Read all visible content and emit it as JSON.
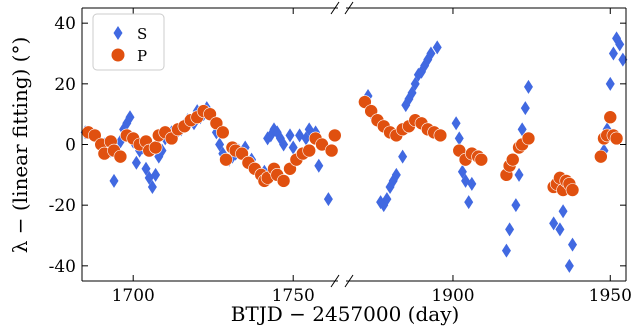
{
  "chart_data": {
    "type": "scatter",
    "xlabel": "BTJD − 2457000 (day)",
    "ylabel": "λ − (linear fitting) (°)",
    "ylim": [
      -45,
      45
    ],
    "yticks": [
      -40,
      -20,
      0,
      20,
      40
    ],
    "broken_x_axis": true,
    "panels": [
      {
        "xlim": [
          1684,
          1764
        ],
        "xticks": [
          1700,
          1750
        ]
      },
      {
        "xlim": [
          1866,
          1955
        ],
        "xticks": [
          1900,
          1950
        ]
      }
    ],
    "legend": {
      "position": "top-left",
      "entries": [
        {
          "label": "S",
          "marker": "diamond",
          "color": "#4169e1"
        },
        {
          "label": "P",
          "marker": "circle",
          "color": "#e0500f"
        }
      ]
    },
    "series": [
      {
        "name": "S",
        "marker": "diamond",
        "color": "#4169e1",
        "points": [
          [
            1685,
            4
          ],
          [
            1688,
            3
          ],
          [
            1691,
            0
          ],
          [
            1693,
            -2
          ],
          [
            1694,
            -12
          ],
          [
            1696,
            1
          ],
          [
            1697,
            5
          ],
          [
            1698,
            7
          ],
          [
            1699,
            9
          ],
          [
            1700,
            1
          ],
          [
            1701,
            -6
          ],
          [
            1702,
            -2
          ],
          [
            1703,
            -1
          ],
          [
            1704,
            -8
          ],
          [
            1705,
            -11
          ],
          [
            1706,
            -14
          ],
          [
            1707,
            -10
          ],
          [
            1708,
            -4
          ],
          [
            1709,
            -2
          ],
          [
            1710,
            2
          ],
          [
            1712,
            4
          ],
          [
            1713,
            3
          ],
          [
            1715,
            5
          ],
          [
            1717,
            8
          ],
          [
            1719,
            7
          ],
          [
            1720,
            11
          ],
          [
            1721,
            9
          ],
          [
            1722,
            10
          ],
          [
            1723,
            12
          ],
          [
            1724,
            10
          ],
          [
            1726,
            4
          ],
          [
            1727,
            0
          ],
          [
            1728,
            -3
          ],
          [
            1730,
            -5
          ],
          [
            1731,
            -4
          ],
          [
            1732,
            -3
          ],
          [
            1733,
            -2
          ],
          [
            1735,
            -1
          ],
          [
            1737,
            -5
          ],
          [
            1739,
            -9
          ],
          [
            1740,
            -11
          ],
          [
            1741,
            -9
          ],
          [
            1742,
            2
          ],
          [
            1743,
            3
          ],
          [
            1744,
            5
          ],
          [
            1745,
            4
          ],
          [
            1746,
            2
          ],
          [
            1747,
            0
          ],
          [
            1749,
            3
          ],
          [
            1750,
            -1
          ],
          [
            1752,
            3
          ],
          [
            1754,
            2
          ],
          [
            1755,
            5
          ],
          [
            1757,
            4
          ],
          [
            1758,
            -7
          ],
          [
            1761,
            -18
          ],
          [
            1873,
            16
          ],
          [
            1875,
            9
          ],
          [
            1877,
            -19
          ],
          [
            1878,
            -20
          ],
          [
            1879,
            -18
          ],
          [
            1880,
            -14
          ],
          [
            1881,
            -12
          ],
          [
            1882,
            -10
          ],
          [
            1883,
            4
          ],
          [
            1884,
            -4
          ],
          [
            1885,
            13
          ],
          [
            1886,
            15
          ],
          [
            1887,
            17
          ],
          [
            1888,
            20
          ],
          [
            1889,
            23
          ],
          [
            1890,
            24
          ],
          [
            1891,
            26
          ],
          [
            1892,
            28
          ],
          [
            1893,
            30
          ],
          [
            1895,
            32
          ],
          [
            1901,
            7
          ],
          [
            1902,
            2
          ],
          [
            1903,
            -9
          ],
          [
            1904,
            -12
          ],
          [
            1905,
            -19
          ],
          [
            1906,
            -13
          ],
          [
            1917,
            -35
          ],
          [
            1918,
            -28
          ],
          [
            1920,
            -20
          ],
          [
            1921,
            -10
          ],
          [
            1922,
            5
          ],
          [
            1923,
            12
          ],
          [
            1924,
            19
          ],
          [
            1932,
            -26
          ],
          [
            1934,
            -28
          ],
          [
            1935,
            -22
          ],
          [
            1936,
            -14
          ],
          [
            1937,
            -40
          ],
          [
            1938,
            -33
          ],
          [
            1948,
            -2
          ],
          [
            1949,
            5
          ],
          [
            1950,
            20
          ],
          [
            1951,
            30
          ],
          [
            1952,
            35
          ],
          [
            1953,
            33
          ],
          [
            1954,
            28
          ]
        ]
      },
      {
        "name": "P",
        "marker": "circle",
        "color": "#e0500f",
        "points": [
          [
            1686,
            4
          ],
          [
            1688,
            3
          ],
          [
            1690,
            0
          ],
          [
            1691,
            -3
          ],
          [
            1693,
            1
          ],
          [
            1694,
            -2
          ],
          [
            1696,
            -4
          ],
          [
            1698,
            3
          ],
          [
            1700,
            2
          ],
          [
            1702,
            0
          ],
          [
            1704,
            1
          ],
          [
            1705,
            -2
          ],
          [
            1707,
            -1
          ],
          [
            1708,
            3
          ],
          [
            1710,
            4
          ],
          [
            1712,
            2
          ],
          [
            1714,
            5
          ],
          [
            1716,
            6
          ],
          [
            1718,
            8
          ],
          [
            1720,
            9
          ],
          [
            1722,
            11
          ],
          [
            1724,
            10
          ],
          [
            1726,
            7
          ],
          [
            1728,
            4
          ],
          [
            1729,
            -5
          ],
          [
            1731,
            -1
          ],
          [
            1732,
            -2
          ],
          [
            1734,
            -3
          ],
          [
            1736,
            -6
          ],
          [
            1738,
            -8
          ],
          [
            1740,
            -10
          ],
          [
            1741,
            -12
          ],
          [
            1742,
            -11
          ],
          [
            1744,
            -8
          ],
          [
            1745,
            -10
          ],
          [
            1747,
            -12
          ],
          [
            1749,
            -8
          ],
          [
            1751,
            -5
          ],
          [
            1753,
            -3
          ],
          [
            1755,
            -2
          ],
          [
            1757,
            2
          ],
          [
            1759,
            0
          ],
          [
            1762,
            -2
          ],
          [
            1763,
            3
          ],
          [
            1872,
            14
          ],
          [
            1874,
            11
          ],
          [
            1876,
            8
          ],
          [
            1878,
            6
          ],
          [
            1880,
            4
          ],
          [
            1882,
            3
          ],
          [
            1884,
            5
          ],
          [
            1886,
            6
          ],
          [
            1888,
            8
          ],
          [
            1890,
            7
          ],
          [
            1892,
            5
          ],
          [
            1894,
            4
          ],
          [
            1896,
            3
          ],
          [
            1902,
            -2
          ],
          [
            1904,
            -5
          ],
          [
            1906,
            -3
          ],
          [
            1908,
            -4
          ],
          [
            1909,
            -5
          ],
          [
            1917,
            -10
          ],
          [
            1918,
            -7
          ],
          [
            1919,
            -5
          ],
          [
            1921,
            -1
          ],
          [
            1922,
            0
          ],
          [
            1924,
            2
          ],
          [
            1932,
            -14
          ],
          [
            1933,
            -13
          ],
          [
            1934,
            -11
          ],
          [
            1935,
            -15
          ],
          [
            1936,
            -12
          ],
          [
            1937,
            -13
          ],
          [
            1938,
            -15
          ],
          [
            1947,
            -4
          ],
          [
            1948,
            2
          ],
          [
            1949,
            3
          ],
          [
            1950,
            9
          ],
          [
            1951,
            3
          ],
          [
            1952,
            2
          ]
        ]
      }
    ]
  }
}
